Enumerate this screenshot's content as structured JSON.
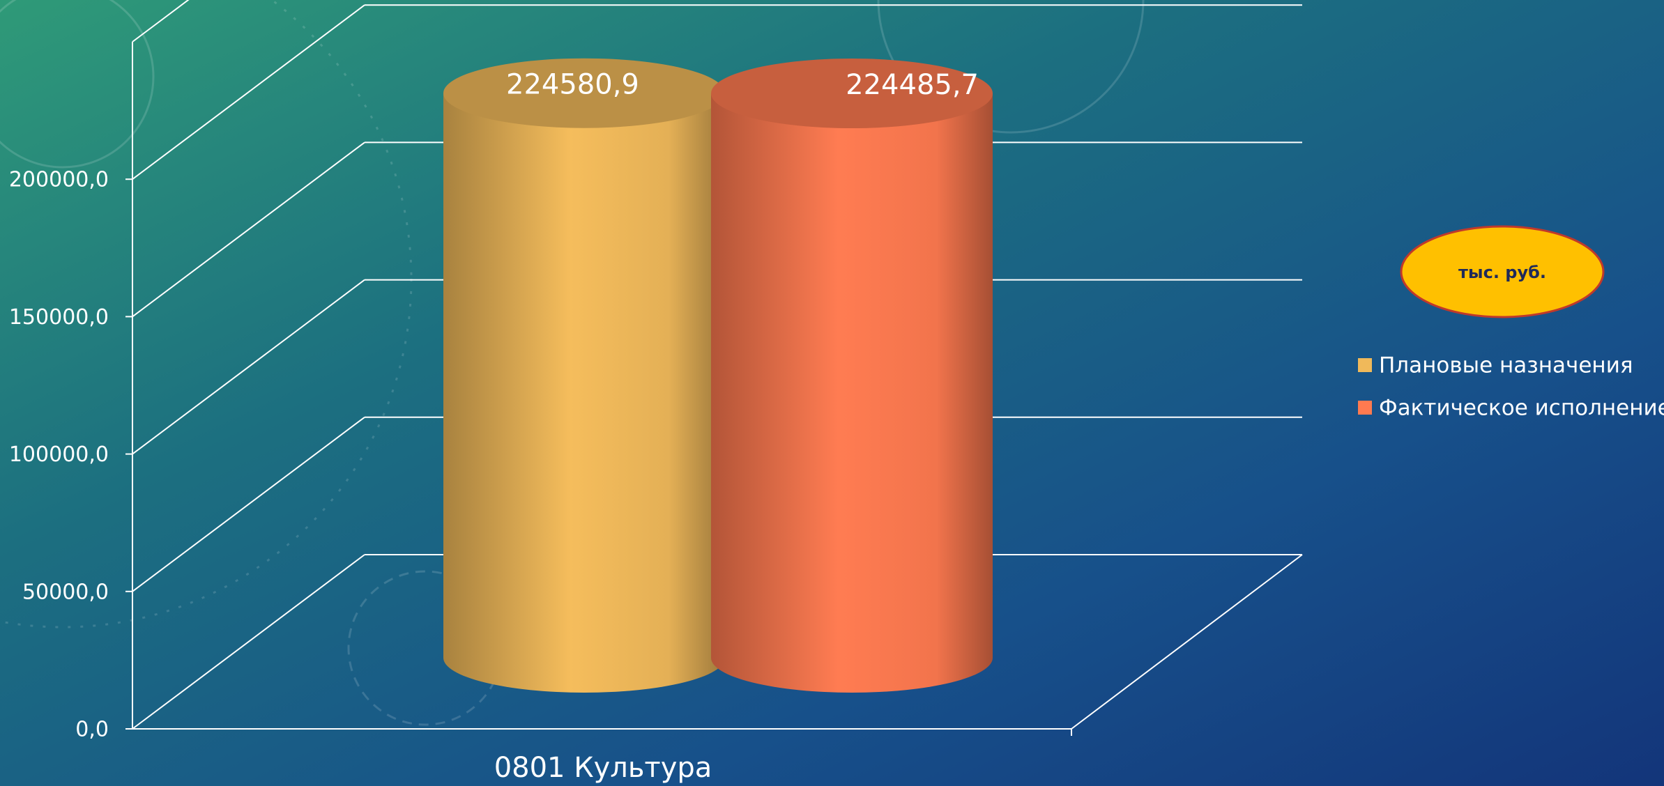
{
  "chart_data": {
    "type": "bar3d",
    "categories": [
      "0801 Культура"
    ],
    "series": [
      {
        "name": "Плановые назначения",
        "color": "#f0b95a",
        "values": [
          224580.9
        ],
        "value_labels": [
          "224580,9"
        ]
      },
      {
        "name": "Фактическое исполнение",
        "color": "#ff7a50",
        "values": [
          224485.7
        ],
        "value_labels": [
          "224485,7"
        ]
      }
    ],
    "ylim": [
      0,
      250000
    ],
    "yticks": [
      {
        "value": 0,
        "label": "0,0"
      },
      {
        "value": 50000,
        "label": "50000,0"
      },
      {
        "value": 100000,
        "label": "100000,0"
      },
      {
        "value": 150000,
        "label": "150000,0"
      },
      {
        "value": 200000,
        "label": "200000,0"
      }
    ],
    "grid": true,
    "annotation": "тыс. руб.",
    "legend": "right"
  }
}
